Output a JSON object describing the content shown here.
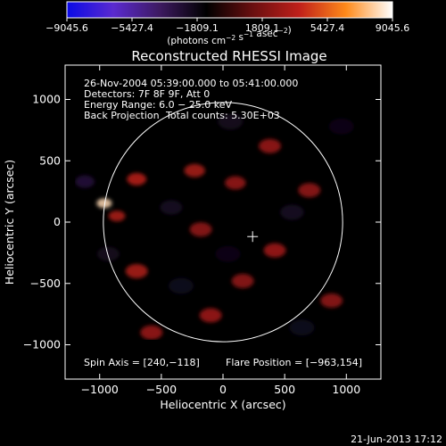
{
  "chart_data": {
    "type": "heatmap",
    "title": "Reconstructed RHESSI Image",
    "xlabel": "Heliocentric X (arcsec)",
    "ylabel": "Heliocentric Y (arcsec)",
    "xlim": [
      -1280,
      1280
    ],
    "ylim": [
      -1280,
      1280
    ],
    "x_ticks": [
      -1000,
      -500,
      0,
      500,
      1000
    ],
    "x_tick_labels": [
      "−1000",
      "−500",
      "0",
      "500",
      "1000"
    ],
    "y_ticks": [
      -1000,
      -500,
      0,
      500,
      1000
    ],
    "y_tick_labels": [
      "−1000",
      "−500",
      "0",
      "500",
      "1000"
    ],
    "colorbar": {
      "range": [
        -9045.6,
        9045.6
      ],
      "ticks": [
        -9045.6,
        -5427.4,
        -1809.1,
        1809.1,
        5427.4,
        9045.6
      ],
      "tick_labels": [
        "−9045.6",
        "−5427.4",
        "−1809.1",
        "1809.1",
        "5427.4",
        "9045.6"
      ],
      "units_text": "(photons cm",
      "units_parts": [
        {
          "t": "(photons cm",
          "sup": false
        },
        {
          "t": "−2",
          "sup": true
        },
        {
          "t": " s",
          "sup": false
        },
        {
          "t": "−1",
          "sup": true
        },
        {
          "t": " asec",
          "sup": false
        },
        {
          "t": "−2",
          "sup": true
        },
        {
          "t": ")",
          "sup": false
        }
      ],
      "colormap": [
        "#0a0ae6",
        "#5a2ad0",
        "#3d1a60",
        "#000000",
        "#6a0f10",
        "#c0201a",
        "#ff8a1a",
        "#ffffff"
      ]
    },
    "annotations": {
      "time_range": "26-Nov-2004 05:39:00.000 to 05:41:00.000",
      "detectors": "Detectors: 7F 8F 9F, Att 0",
      "energy_range": "Energy Range: 6.0 − 25.0 keV",
      "method": "Back Projection",
      "total_counts": "Total counts: 5.30E+03",
      "spin_axis": "Spin Axis = [240,−118]",
      "flare_position": "Flare Position = [−963,154]"
    },
    "solar_limb": {
      "center": [
        0,
        0
      ],
      "radius_arcsec": 970
    },
    "spin_axis_marker": [
      240,
      -118
    ],
    "flare_position": [
      -963,
      154
    ],
    "sources": [
      {
        "x": -963,
        "y": 154,
        "value": 8200,
        "sigma": 55
      },
      {
        "x": -700,
        "y": 350,
        "value": 3800,
        "sigma": 70
      },
      {
        "x": -860,
        "y": 50,
        "value": 3400,
        "sigma": 60
      },
      {
        "x": -700,
        "y": -400,
        "value": 3400,
        "sigma": 80
      },
      {
        "x": -580,
        "y": -900,
        "value": 2900,
        "sigma": 80
      },
      {
        "x": -230,
        "y": 420,
        "value": 3300,
        "sigma": 75
      },
      {
        "x": -180,
        "y": -60,
        "value": 2600,
        "sigma": 80
      },
      {
        "x": -100,
        "y": -760,
        "value": 3000,
        "sigma": 80
      },
      {
        "x": 100,
        "y": 320,
        "value": 2800,
        "sigma": 75
      },
      {
        "x": 160,
        "y": -480,
        "value": 2600,
        "sigma": 80
      },
      {
        "x": 380,
        "y": 620,
        "value": 2900,
        "sigma": 80
      },
      {
        "x": 420,
        "y": -230,
        "value": 3100,
        "sigma": 80
      },
      {
        "x": 700,
        "y": 260,
        "value": 2700,
        "sigma": 80
      },
      {
        "x": 880,
        "y": -640,
        "value": 2600,
        "sigma": 80
      },
      {
        "x": -1120,
        "y": 330,
        "value": -2900,
        "sigma": 70
      },
      {
        "x": -930,
        "y": -260,
        "value": -2200,
        "sigma": 80
      },
      {
        "x": -420,
        "y": 120,
        "value": -2300,
        "sigma": 80
      },
      {
        "x": -340,
        "y": -520,
        "value": -2100,
        "sigma": 90
      },
      {
        "x": 60,
        "y": 820,
        "value": -2200,
        "sigma": 90
      },
      {
        "x": 40,
        "y": -260,
        "value": -2000,
        "sigma": 90
      },
      {
        "x": 560,
        "y": 80,
        "value": -2300,
        "sigma": 85
      },
      {
        "x": 640,
        "y": -860,
        "value": -2100,
        "sigma": 90
      },
      {
        "x": 960,
        "y": 780,
        "value": -2000,
        "sigma": 90
      }
    ]
  },
  "footer": {
    "timestamp": "21-Jun-2013 17:12"
  }
}
